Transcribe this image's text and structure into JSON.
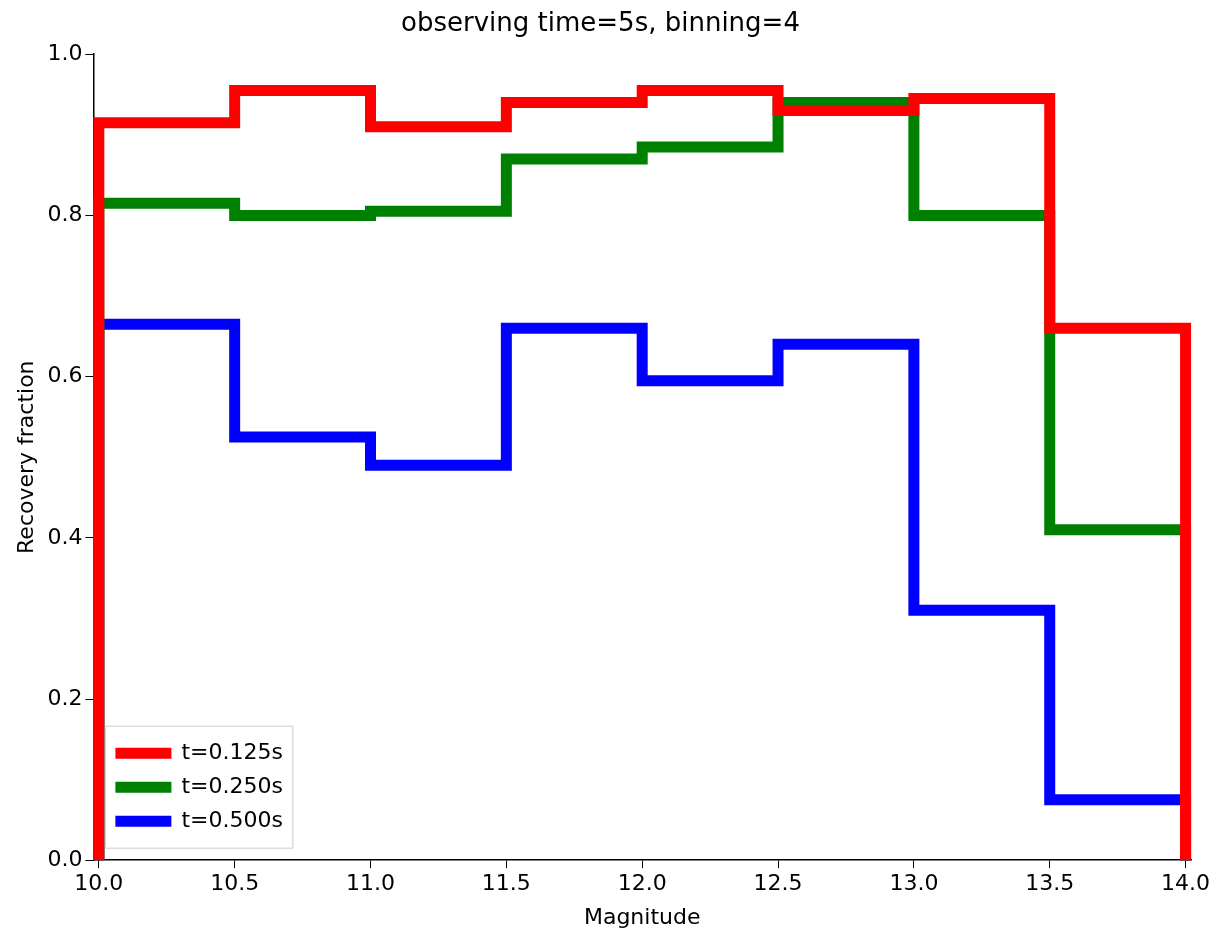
{
  "chart_data": {
    "type": "histogram",
    "title": "observing time=5s, binning=4",
    "xlabel": "Magnitude",
    "ylabel": "Recovery fraction",
    "bins": [
      10.0,
      10.5,
      11.0,
      11.5,
      12.0,
      12.5,
      13.0,
      13.5,
      14.0
    ],
    "series": [
      {
        "name": "t=0.125s",
        "color": "#ff0000",
        "values": [
          0.915,
          0.955,
          0.91,
          0.94,
          0.955,
          0.93,
          0.945,
          0.66
        ]
      },
      {
        "name": "t=0.250s",
        "color": "#008000",
        "values": [
          0.815,
          0.8,
          0.805,
          0.87,
          0.885,
          0.94,
          0.8,
          0.41
        ]
      },
      {
        "name": "t=0.500s",
        "color": "#0000ff",
        "values": [
          0.665,
          0.525,
          0.49,
          0.66,
          0.595,
          0.64,
          0.31,
          0.075
        ]
      }
    ],
    "xlim": [
      9.98,
      14.02
    ],
    "ylim": [
      0,
      1.0
    ],
    "xticks": [
      {
        "value": 10,
        "label": "10.0"
      },
      10.5,
      {
        "value": 11,
        "label": "11.0"
      },
      11.5,
      {
        "value": 12,
        "label": "12.0"
      },
      12.5,
      {
        "value": 13,
        "label": "13.0"
      },
      13.5,
      {
        "value": 14,
        "label": "14.0"
      }
    ],
    "yticks": [
      {
        "value": 0,
        "label": "0.0"
      },
      0.2,
      0.4,
      0.6,
      0.8,
      {
        "value": 1,
        "label": "1.0"
      }
    ],
    "grid": false,
    "legend": "bottom left"
  }
}
